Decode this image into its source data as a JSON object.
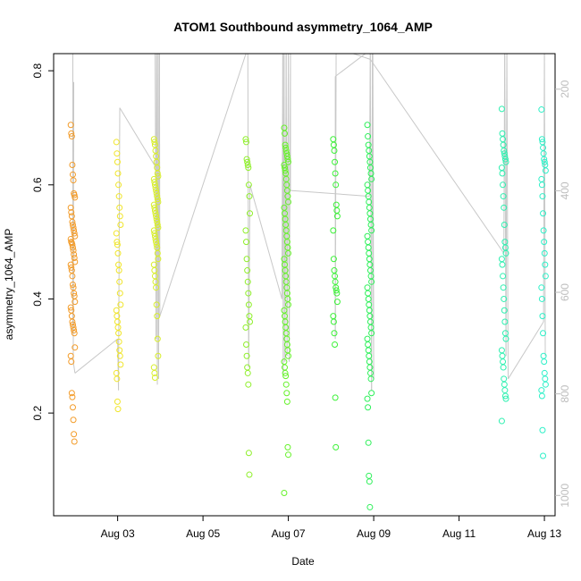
{
  "chart_data": {
    "type": "scatter",
    "title": "ATOM1 Southbound asymmetry_1064_AMP",
    "xlabel": "Date",
    "ylabel": "asymmetry_1064_AMP",
    "xlim": [
      1.5,
      13.25
    ],
    "ylim": [
      0.02,
      0.83
    ],
    "x_ticks": [
      {
        "value": 3,
        "label": "Aug 03"
      },
      {
        "value": 5,
        "label": "Aug 05"
      },
      {
        "value": 7,
        "label": "Aug 07"
      },
      {
        "value": 9,
        "label": "Aug 09"
      },
      {
        "value": 11,
        "label": "Aug 11"
      },
      {
        "value": 13,
        "label": "Aug 13"
      }
    ],
    "y_ticks": [
      0.2,
      0.4,
      0.6,
      0.8
    ],
    "y2_range": [
      1040,
      130
    ],
    "y2_ticks": [
      200,
      400,
      600,
      800,
      1000
    ],
    "y2_color": "#bdbdbd",
    "line_color": "#c8c8c8",
    "clusters": [
      {
        "x": 1.95,
        "color": "#f39c2a",
        "points": [
          0.705,
          0.69,
          0.685,
          0.635,
          0.618,
          0.608,
          0.585,
          0.582,
          0.578,
          0.56,
          0.552,
          0.545,
          0.535,
          0.53,
          0.525,
          0.52,
          0.515,
          0.51,
          0.505,
          0.5,
          0.498,
          0.495,
          0.49,
          0.485,
          0.478,
          0.472,
          0.465,
          0.46,
          0.455,
          0.45,
          0.44,
          0.425,
          0.42,
          0.41,
          0.405,
          0.395,
          0.385,
          0.38,
          0.37,
          0.36,
          0.355,
          0.35,
          0.345,
          0.34,
          0.315,
          0.3,
          0.29,
          0.235,
          0.228,
          0.21,
          0.188,
          0.163,
          0.15
        ]
      },
      {
        "x": 3.02,
        "color": "#f0e52a",
        "points": [
          0.675,
          0.655,
          0.64,
          0.62,
          0.6,
          0.58,
          0.56,
          0.545,
          0.53,
          0.515,
          0.5,
          0.495,
          0.48,
          0.46,
          0.45,
          0.43,
          0.41,
          0.39,
          0.38,
          0.37,
          0.36,
          0.35,
          0.34,
          0.325,
          0.31,
          0.3,
          0.285,
          0.27,
          0.26,
          0.22,
          0.207
        ]
      },
      {
        "x": 3.9,
        "color": "#d8ee2a",
        "points": [
          0.68,
          0.675,
          0.67,
          0.66,
          0.65,
          0.64,
          0.63,
          0.62,
          0.615,
          0.61,
          0.605,
          0.6,
          0.595,
          0.59,
          0.585,
          0.58,
          0.575,
          0.57,
          0.565,
          0.56,
          0.555,
          0.55,
          0.545,
          0.54,
          0.535,
          0.53,
          0.525,
          0.52,
          0.515,
          0.51,
          0.505,
          0.5,
          0.495,
          0.49,
          0.48,
          0.47,
          0.46,
          0.45,
          0.44,
          0.43,
          0.42,
          0.39,
          0.37,
          0.33,
          0.3,
          0.28,
          0.27,
          0.262
        ]
      },
      {
        "x": 6.05,
        "color": "#8fef2a",
        "points": [
          0.68,
          0.675,
          0.645,
          0.64,
          0.635,
          0.63,
          0.6,
          0.58,
          0.55,
          0.52,
          0.5,
          0.47,
          0.45,
          0.43,
          0.41,
          0.39,
          0.37,
          0.36,
          0.35,
          0.32,
          0.3,
          0.28,
          0.27,
          0.25,
          0.13,
          0.092
        ]
      },
      {
        "x": 6.95,
        "color": "#66f22a",
        "points": [
          0.7,
          0.69,
          0.67,
          0.665,
          0.66,
          0.655,
          0.65,
          0.645,
          0.64,
          0.635,
          0.63,
          0.625,
          0.62,
          0.61,
          0.6,
          0.59,
          0.58,
          0.57,
          0.56,
          0.55,
          0.54,
          0.53,
          0.52,
          0.51,
          0.5,
          0.49,
          0.48,
          0.47,
          0.46,
          0.45,
          0.44,
          0.43,
          0.42,
          0.41,
          0.4,
          0.39,
          0.38,
          0.37,
          0.36,
          0.35,
          0.34,
          0.33,
          0.32,
          0.31,
          0.3,
          0.29,
          0.28,
          0.27,
          0.265,
          0.25,
          0.235,
          0.22,
          0.14,
          0.127,
          0.06
        ]
      },
      {
        "x": 8.1,
        "color": "#3cf238",
        "points": [
          0.68,
          0.67,
          0.66,
          0.64,
          0.62,
          0.6,
          0.565,
          0.555,
          0.545,
          0.52,
          0.47,
          0.45,
          0.44,
          0.43,
          0.42,
          0.415,
          0.41,
          0.395,
          0.37,
          0.36,
          0.34,
          0.32,
          0.227,
          0.14
        ]
      },
      {
        "x": 8.9,
        "color": "#2ef05a",
        "points": [
          0.705,
          0.685,
          0.67,
          0.66,
          0.65,
          0.64,
          0.63,
          0.62,
          0.61,
          0.6,
          0.59,
          0.58,
          0.57,
          0.56,
          0.55,
          0.54,
          0.53,
          0.52,
          0.51,
          0.5,
          0.49,
          0.48,
          0.47,
          0.46,
          0.45,
          0.44,
          0.43,
          0.42,
          0.41,
          0.4,
          0.39,
          0.38,
          0.37,
          0.36,
          0.35,
          0.34,
          0.33,
          0.32,
          0.31,
          0.3,
          0.29,
          0.28,
          0.27,
          0.26,
          0.235,
          0.225,
          0.21,
          0.148,
          0.09,
          0.08,
          0.035
        ]
      },
      {
        "x": 12.05,
        "color": "#2ef0b0",
        "points": [
          0.733,
          0.69,
          0.68,
          0.67,
          0.66,
          0.655,
          0.65,
          0.645,
          0.64,
          0.63,
          0.62,
          0.6,
          0.58,
          0.56,
          0.53,
          0.5,
          0.49,
          0.48,
          0.47,
          0.46,
          0.44,
          0.42,
          0.4,
          0.38,
          0.36,
          0.34,
          0.33,
          0.31,
          0.3,
          0.29,
          0.28,
          0.26,
          0.25,
          0.24,
          0.23,
          0.225,
          0.186
        ]
      },
      {
        "x": 12.98,
        "color": "#2ef0c8",
        "points": [
          0.732,
          0.68,
          0.675,
          0.665,
          0.655,
          0.645,
          0.64,
          0.635,
          0.625,
          0.61,
          0.6,
          0.58,
          0.55,
          0.52,
          0.5,
          0.48,
          0.46,
          0.44,
          0.42,
          0.4,
          0.37,
          0.34,
          0.3,
          0.29,
          0.27,
          0.26,
          0.25,
          0.24,
          0.23,
          0.17,
          0.125
        ]
      }
    ]
  }
}
